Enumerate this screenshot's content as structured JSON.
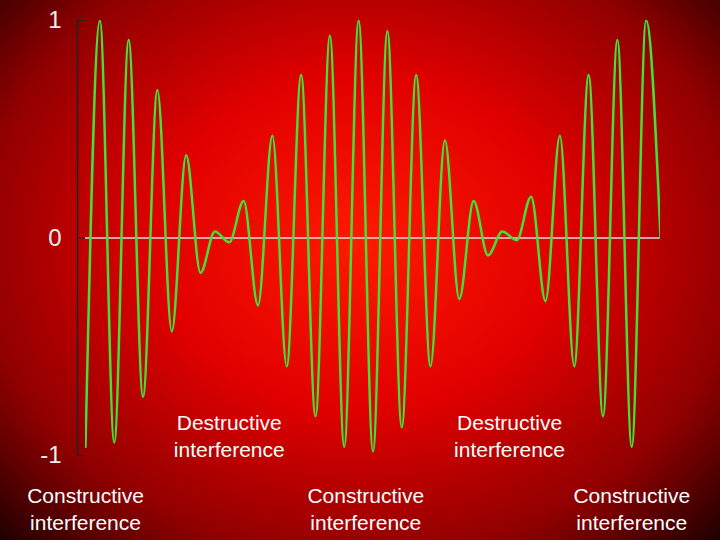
{
  "chart_data": {
    "type": "line",
    "values": [
      -0.96,
      1.0,
      -0.94,
      0.91,
      -0.73,
      0.68,
      -0.43,
      0.38,
      -0.16,
      0.03,
      -0.02,
      0.17,
      -0.31,
      0.47,
      -0.59,
      0.75,
      -0.82,
      0.93,
      -0.96,
      1.0,
      -0.98,
      0.95,
      -0.87,
      0.75,
      -0.59,
      0.45,
      -0.28,
      0.17,
      -0.08,
      0.03,
      -0.01,
      0.19,
      -0.29,
      0.47,
      -0.59,
      0.75,
      -0.82,
      0.91,
      -0.96,
      1.0,
      0.0
    ],
    "color": "#44e033",
    "ylim": [
      -1,
      1
    ],
    "yticks": [
      -1,
      0,
      1
    ],
    "grid": false,
    "tick_labels": "y",
    "annotations": [
      {
        "text": "Destructive interference",
        "x": 10
      },
      {
        "text": "Destructive interference",
        "x": 29.5
      },
      {
        "text": "Constructive interference",
        "x": 0
      },
      {
        "text": "Constructive interference",
        "x": 19.5
      },
      {
        "text": "Constructive interference",
        "x": 38
      }
    ]
  }
}
